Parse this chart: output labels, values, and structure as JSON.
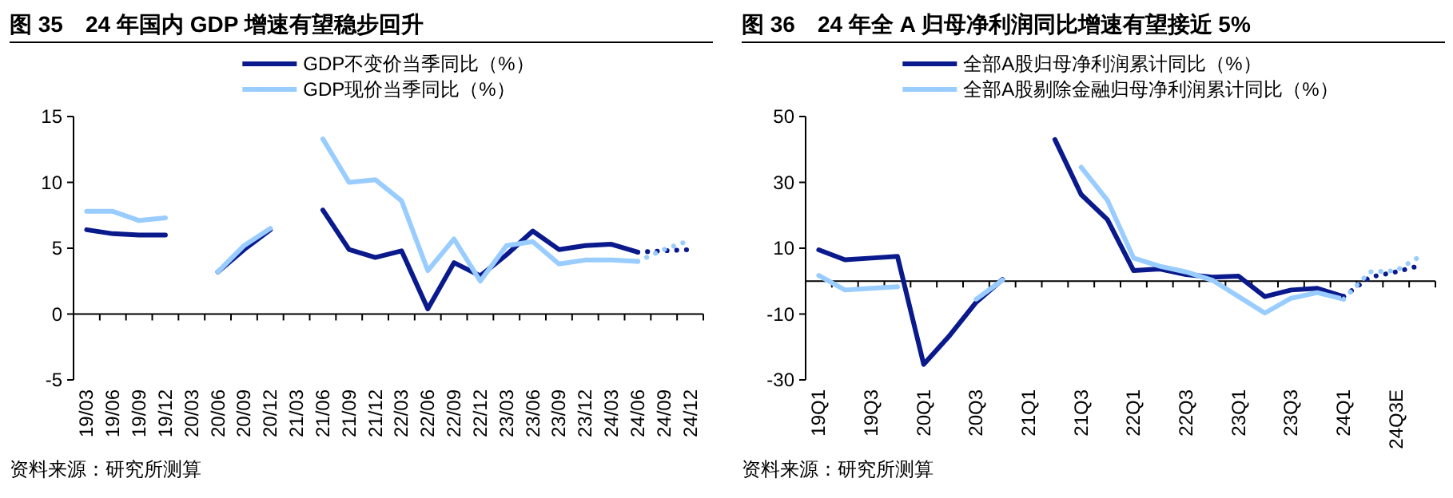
{
  "chart_data": [
    {
      "type": "line",
      "title": "图 35　24 年国内 GDP 增速有望稳步回升",
      "categories": [
        "19/03",
        "19/06",
        "19/09",
        "19/12",
        "20/03",
        "20/06",
        "20/09",
        "20/12",
        "21/03",
        "21/06",
        "21/09",
        "21/12",
        "22/03",
        "22/06",
        "22/09",
        "22/12",
        "23/03",
        "23/06",
        "23/09",
        "23/12",
        "24/03",
        "24/06",
        "24/09",
        "24/12"
      ],
      "series": [
        {
          "name": "GDP不变价当季同比（%）",
          "color": "#0a1a8c",
          "values": [
            6.4,
            6.1,
            6.0,
            6.0,
            null,
            3.2,
            4.9,
            6.4,
            null,
            7.9,
            4.9,
            4.3,
            4.8,
            0.4,
            3.9,
            2.9,
            4.5,
            6.3,
            4.9,
            5.2,
            5.3,
            4.7,
            null,
            null
          ]
        },
        {
          "name": "GDP现价当季同比（%）",
          "color": "#99ccff",
          "values": [
            7.8,
            7.8,
            7.1,
            7.3,
            null,
            3.2,
            5.2,
            6.5,
            null,
            13.3,
            10.0,
            10.2,
            8.6,
            3.3,
            5.7,
            2.5,
            5.2,
            5.5,
            3.8,
            4.1,
            4.1,
            4.0,
            null,
            null
          ]
        },
        {
          "color": "#0a1a8c",
          "line_style": "dotted",
          "values": [
            null,
            null,
            null,
            null,
            null,
            null,
            null,
            null,
            null,
            null,
            null,
            null,
            null,
            null,
            null,
            null,
            null,
            null,
            null,
            null,
            null,
            4.7,
            4.8,
            4.9
          ]
        },
        {
          "color": "#99ccff",
          "line_style": "dotted",
          "values": [
            null,
            null,
            null,
            null,
            null,
            null,
            null,
            null,
            null,
            null,
            null,
            null,
            null,
            null,
            null,
            null,
            null,
            null,
            null,
            null,
            null,
            4.0,
            4.9,
            5.6
          ]
        }
      ],
      "ylim": [
        -5,
        15
      ],
      "yticks": [
        -5,
        0,
        5,
        10,
        15
      ],
      "legend": "top",
      "annotations": [
        "资料来源：研究所测算"
      ]
    },
    {
      "type": "line",
      "title": "图 36　24 年全 A 归母净利润同比增速有望接近 5%",
      "categories": [
        "19Q1",
        null,
        "19Q3",
        null,
        "20Q1",
        null,
        "20Q3",
        null,
        "21Q1",
        null,
        "21Q3",
        null,
        "22Q1",
        null,
        "22Q3",
        null,
        "23Q1",
        null,
        "23Q3",
        null,
        "24Q1",
        null,
        "24Q3E",
        null
      ],
      "series": [
        {
          "name": "全部A股归母净利润累计同比（%）",
          "color": "#0a1a8c",
          "values": [
            9.5,
            6.5,
            7.0,
            7.5,
            -25.3,
            -16.4,
            -6.4,
            0.5,
            null,
            43,
            26.3,
            18.7,
            3.2,
            3.7,
            2.0,
            1.2,
            1.5,
            -4.7,
            -2.7,
            -2.2,
            -4.7,
            null,
            null,
            null
          ]
        },
        {
          "name": "全部A股剔除金融归母净利润累计同比（%）",
          "color": "#99ccff",
          "values": [
            1.7,
            -2.7,
            -2.2,
            -1.7,
            null,
            null,
            -5.5,
            0.3,
            null,
            null,
            34.6,
            24.6,
            7.0,
            4.5,
            2.8,
            0.3,
            -4.7,
            -9.7,
            -5.2,
            -3.5,
            -5.5,
            null,
            null,
            null
          ]
        },
        {
          "color": "#0a1a8c",
          "line_style": "dotted",
          "values": [
            null,
            null,
            null,
            null,
            null,
            null,
            null,
            null,
            null,
            null,
            null,
            null,
            null,
            null,
            null,
            null,
            null,
            null,
            null,
            null,
            -4.7,
            1.2,
            2.8,
            4.9
          ]
        },
        {
          "color": "#99ccff",
          "line_style": "dotted",
          "values": [
            null,
            null,
            null,
            null,
            null,
            null,
            null,
            null,
            null,
            null,
            null,
            null,
            null,
            null,
            null,
            null,
            null,
            null,
            null,
            null,
            -5.5,
            2.8,
            3.2,
            7.9
          ]
        }
      ],
      "ylim": [
        -30,
        50
      ],
      "yticks": [
        -30,
        -10,
        10,
        30,
        50
      ],
      "legend": "top",
      "annotations": [
        "资料来源：研究所测算"
      ]
    }
  ]
}
